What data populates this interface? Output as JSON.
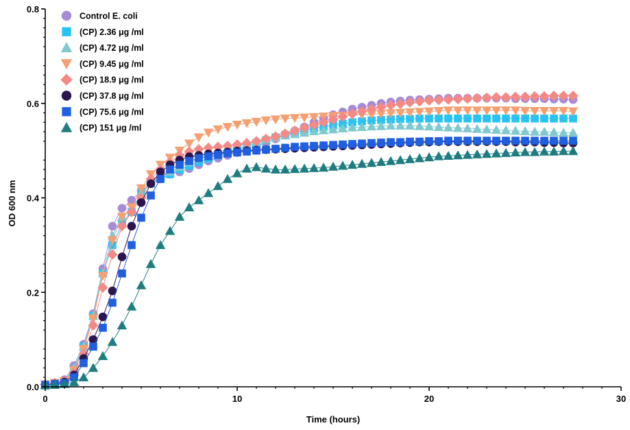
{
  "chart_data": {
    "type": "line",
    "xlabel": "Time (hours)",
    "ylabel": "OD 600 nm",
    "xlim": [
      0,
      30
    ],
    "ylim": [
      0,
      0.8
    ],
    "x_ticks": [
      "0",
      "10",
      "20",
      "30"
    ],
    "y_ticks": [
      "0.0",
      "0.2",
      "0.4",
      "0.6",
      "0.8"
    ],
    "x": [
      0,
      0.5,
      1,
      1.5,
      2,
      2.5,
      3,
      3.5,
      4,
      4.5,
      5,
      5.5,
      6,
      6.5,
      7,
      7.5,
      8,
      8.5,
      9,
      9.5,
      10,
      10.5,
      11,
      11.5,
      12,
      12.5,
      13,
      13.5,
      14,
      14.5,
      15,
      15.5,
      16,
      16.5,
      17,
      17.5,
      18,
      18.5,
      19,
      19.5,
      20,
      20.5,
      21,
      21.5,
      22,
      22.5,
      23,
      23.5,
      24,
      24.5,
      25,
      25.5,
      26,
      26.5,
      27,
      27.5
    ],
    "legend_position": "top-left",
    "grid": false,
    "series": [
      {
        "name": "Control E. coli",
        "marker": "circle",
        "color": "#a78bd6",
        "values": [
          0.005,
          0.008,
          0.015,
          0.045,
          0.09,
          0.155,
          0.25,
          0.34,
          0.378,
          0.395,
          0.415,
          0.43,
          0.44,
          0.45,
          0.455,
          0.462,
          0.47,
          0.478,
          0.484,
          0.49,
          0.496,
          0.503,
          0.51,
          0.517,
          0.525,
          0.533,
          0.542,
          0.55,
          0.56,
          0.568,
          0.576,
          0.582,
          0.588,
          0.592,
          0.596,
          0.6,
          0.603,
          0.605,
          0.607,
          0.608,
          0.609,
          0.61,
          0.611,
          0.611,
          0.611,
          0.611,
          0.611,
          0.611,
          0.611,
          0.61,
          0.61,
          0.61,
          0.61,
          0.609,
          0.609,
          0.608
        ]
      },
      {
        "name": "(CP) 2.36 μg /ml",
        "marker": "square",
        "color": "#29c3f3",
        "values": [
          0.005,
          0.008,
          0.012,
          0.035,
          0.085,
          0.15,
          0.24,
          0.3,
          0.345,
          0.37,
          0.41,
          0.43,
          0.44,
          0.45,
          0.46,
          0.468,
          0.476,
          0.483,
          0.49,
          0.496,
          0.503,
          0.51,
          0.516,
          0.522,
          0.528,
          0.533,
          0.538,
          0.543,
          0.547,
          0.551,
          0.554,
          0.557,
          0.56,
          0.562,
          0.564,
          0.565,
          0.566,
          0.567,
          0.567,
          0.568,
          0.568,
          0.568,
          0.568,
          0.568,
          0.568,
          0.568,
          0.568,
          0.568,
          0.568,
          0.568,
          0.568,
          0.568,
          0.568,
          0.568,
          0.568,
          0.568
        ]
      },
      {
        "name": "(CP) 4.72 μg /ml",
        "marker": "triangle-up",
        "color": "#7fc9cf",
        "values": [
          0.005,
          0.008,
          0.012,
          0.04,
          0.085,
          0.15,
          0.24,
          0.32,
          0.36,
          0.375,
          0.41,
          0.43,
          0.445,
          0.455,
          0.465,
          0.475,
          0.483,
          0.49,
          0.497,
          0.503,
          0.509,
          0.514,
          0.519,
          0.524,
          0.528,
          0.532,
          0.535,
          0.538,
          0.541,
          0.543,
          0.545,
          0.547,
          0.549,
          0.55,
          0.551,
          0.552,
          0.553,
          0.553,
          0.553,
          0.552,
          0.551,
          0.55,
          0.549,
          0.548,
          0.547,
          0.546,
          0.545,
          0.544,
          0.543,
          0.542,
          0.541,
          0.54,
          0.54,
          0.539,
          0.538,
          0.538
        ]
      },
      {
        "name": "(CP) 9.45 μg /ml",
        "marker": "triangle-down",
        "color": "#f6a072",
        "values": [
          0.005,
          0.008,
          0.012,
          0.035,
          0.08,
          0.145,
          0.235,
          0.31,
          0.36,
          0.38,
          0.42,
          0.45,
          0.47,
          0.485,
          0.5,
          0.515,
          0.528,
          0.538,
          0.545,
          0.55,
          0.555,
          0.558,
          0.561,
          0.564,
          0.566,
          0.568,
          0.569,
          0.57,
          0.571,
          0.572,
          0.573,
          0.574,
          0.575,
          0.576,
          0.577,
          0.578,
          0.579,
          0.58,
          0.581,
          0.582,
          0.583,
          0.584,
          0.585,
          0.585,
          0.585,
          0.585,
          0.585,
          0.585,
          0.585,
          0.585,
          0.584,
          0.584,
          0.584,
          0.584,
          0.584,
          0.583
        ]
      },
      {
        "name": "(CP) 18.9 μg /ml",
        "marker": "diamond",
        "color": "#f48a86",
        "values": [
          0.005,
          0.008,
          0.012,
          0.03,
          0.07,
          0.13,
          0.21,
          0.28,
          0.34,
          0.37,
          0.4,
          0.44,
          0.46,
          0.475,
          0.49,
          0.498,
          0.503,
          0.506,
          0.508,
          0.51,
          0.513,
          0.516,
          0.52,
          0.525,
          0.53,
          0.536,
          0.542,
          0.548,
          0.554,
          0.56,
          0.566,
          0.572,
          0.578,
          0.583,
          0.588,
          0.592,
          0.596,
          0.599,
          0.602,
          0.604,
          0.606,
          0.607,
          0.608,
          0.609,
          0.61,
          0.611,
          0.612,
          0.613,
          0.613,
          0.614,
          0.614,
          0.615,
          0.615,
          0.616,
          0.616,
          0.616
        ]
      },
      {
        "name": "(CP) 37.8 μg /ml",
        "marker": "circle",
        "color": "#2b1650",
        "values": [
          0.004,
          0.006,
          0.01,
          0.025,
          0.06,
          0.1,
          0.148,
          0.203,
          0.275,
          0.34,
          0.39,
          0.43,
          0.455,
          0.47,
          0.48,
          0.487,
          0.49,
          0.493,
          0.495,
          0.497,
          0.499,
          0.5,
          0.501,
          0.502,
          0.503,
          0.504,
          0.505,
          0.506,
          0.507,
          0.508,
          0.509,
          0.51,
          0.511,
          0.512,
          0.513,
          0.514,
          0.515,
          0.516,
          0.517,
          0.518,
          0.518,
          0.519,
          0.519,
          0.519,
          0.519,
          0.519,
          0.519,
          0.519,
          0.519,
          0.518,
          0.518,
          0.518,
          0.517,
          0.517,
          0.516,
          0.516
        ]
      },
      {
        "name": "(CP) 75.6 μg /ml",
        "marker": "square",
        "color": "#1f5fe0",
        "values": [
          0.004,
          0.006,
          0.008,
          0.02,
          0.05,
          0.085,
          0.125,
          0.178,
          0.24,
          0.3,
          0.358,
          0.405,
          0.44,
          0.46,
          0.47,
          0.478,
          0.484,
          0.488,
          0.491,
          0.494,
          0.496,
          0.498,
          0.5,
          0.502,
          0.504,
          0.506,
          0.508,
          0.509,
          0.51,
          0.511,
          0.512,
          0.513,
          0.514,
          0.515,
          0.516,
          0.517,
          0.518,
          0.518,
          0.519,
          0.519,
          0.52,
          0.52,
          0.521,
          0.521,
          0.521,
          0.521,
          0.521,
          0.521,
          0.521,
          0.521,
          0.521,
          0.521,
          0.521,
          0.521,
          0.521,
          0.521
        ]
      },
      {
        "name": "(CP) 151 μg /ml",
        "marker": "triangle-up",
        "color": "#1f7d80",
        "values": [
          0.003,
          0.004,
          0.006,
          0.01,
          0.02,
          0.04,
          0.065,
          0.095,
          0.13,
          0.17,
          0.215,
          0.26,
          0.3,
          0.33,
          0.36,
          0.38,
          0.395,
          0.41,
          0.425,
          0.44,
          0.452,
          0.462,
          0.465,
          0.462,
          0.46,
          0.46,
          0.461,
          0.462,
          0.463,
          0.464,
          0.466,
          0.468,
          0.47,
          0.472,
          0.474,
          0.476,
          0.478,
          0.48,
          0.482,
          0.484,
          0.486,
          0.488,
          0.489,
          0.49,
          0.491,
          0.492,
          0.493,
          0.494,
          0.495,
          0.496,
          0.497,
          0.497,
          0.498,
          0.498,
          0.499,
          0.499
        ]
      }
    ]
  }
}
